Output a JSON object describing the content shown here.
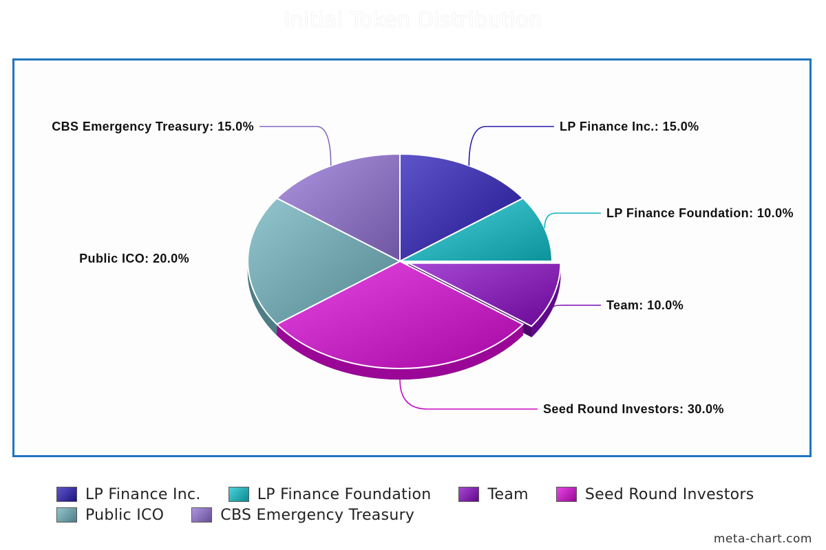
{
  "chart_data": {
    "type": "pie",
    "title": "Initial Token Distribution",
    "unit": "%",
    "slices": [
      {
        "label": "LP Finance Inc.",
        "value": 15.0,
        "color": "#2a1cb8",
        "exploded": false
      },
      {
        "label": "LP Finance Foundation",
        "value": 10.0,
        "color": "#10c3cf",
        "exploded": false
      },
      {
        "label": "Team",
        "value": 10.0,
        "color": "#8a0bc6",
        "exploded": true
      },
      {
        "label": "Seed Round Investors",
        "value": 30.0,
        "color": "#dc0ad8",
        "exploded": false
      },
      {
        "label": "Public ICO",
        "value": 20.0,
        "color": "#6fb3be",
        "exploded": false
      },
      {
        "label": "CBS Emergency Treasury",
        "value": 15.0,
        "color": "#9371d6",
        "exploded": false
      }
    ],
    "data_labels": [
      "LP Finance Inc.: 15.0%",
      "LP Finance Foundation: 10.0%",
      "Team: 10.0%",
      "Seed Round Investors: 30.0%",
      "Public ICO: 20.0%",
      "CBS Emergency Treasury: 15.0%"
    ],
    "legend_position": "bottom",
    "style": "3d-exploded-pie"
  },
  "watermark": "meta-chart.com"
}
